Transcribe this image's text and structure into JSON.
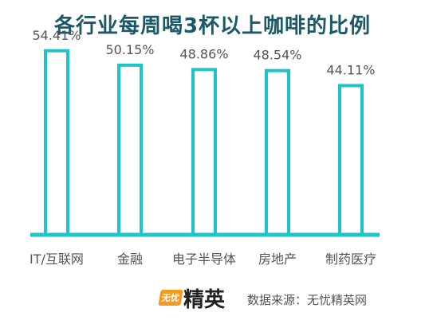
{
  "colors": {
    "title": "#1b5968",
    "bar_stroke": "#1fc4c9",
    "axis": "#1fc4c9",
    "label": "#555555",
    "logo_badge": "#f29a22"
  },
  "chart_data": {
    "type": "bar",
    "title": "各行业每周喝3杯以上咖啡的比例",
    "categories": [
      "IT/互联网",
      "金融",
      "电子半导体",
      "房地产",
      "制药医疗"
    ],
    "values": [
      54.41,
      50.15,
      48.86,
      48.54,
      44.11
    ],
    "value_labels": [
      "54.41%",
      "50.15%",
      "48.86%",
      "48.54%",
      "44.11%"
    ],
    "ylim": [
      0,
      60
    ],
    "grid": false,
    "legend": "none"
  },
  "footer": {
    "logo_badge": "无忧",
    "logo_text": "精英",
    "source": "数据来源：无忧精英网"
  }
}
